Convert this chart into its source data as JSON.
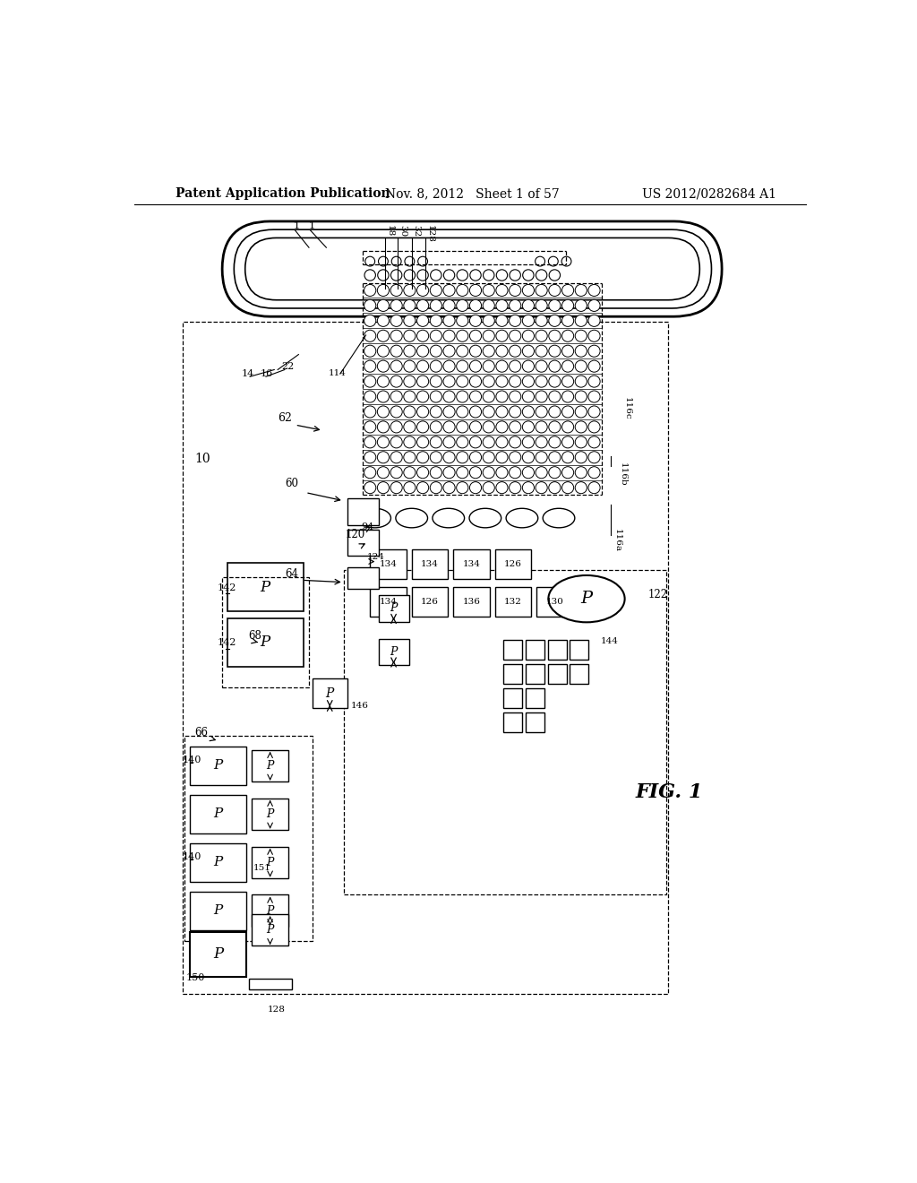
{
  "bg_color": "#ffffff",
  "header_left": "Patent Application Publication",
  "header_mid": "Nov. 8, 2012   Sheet 1 of 57",
  "header_right": "US 2012/0282684 A1",
  "fig_label": "FIG. 1"
}
